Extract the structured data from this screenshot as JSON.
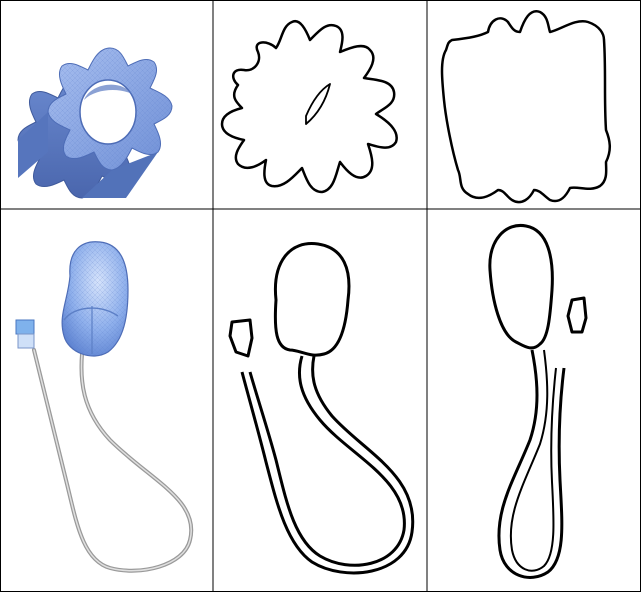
{
  "figure": {
    "rows": [
      {
        "name": "gear",
        "panels": [
          {
            "kind": "rendered-3d-model",
            "icon": "gear-model"
          },
          {
            "kind": "silhouette-outline",
            "icon": "gear-outline-view-1"
          },
          {
            "kind": "silhouette-outline",
            "icon": "gear-outline-view-2"
          }
        ]
      },
      {
        "name": "computer-mouse",
        "panels": [
          {
            "kind": "rendered-3d-model",
            "icon": "mouse-model"
          },
          {
            "kind": "silhouette-outline",
            "icon": "mouse-outline-view-1"
          },
          {
            "kind": "silhouette-outline",
            "icon": "mouse-outline-view-2"
          }
        ]
      }
    ],
    "colors": {
      "model_fill": "#7f9fe0",
      "model_fill_light": "#b9cdf5",
      "model_shadow": "#4a6bb8",
      "cable_gray": "#a8a8a8",
      "outline": "#000000",
      "grid": "#000000"
    }
  }
}
